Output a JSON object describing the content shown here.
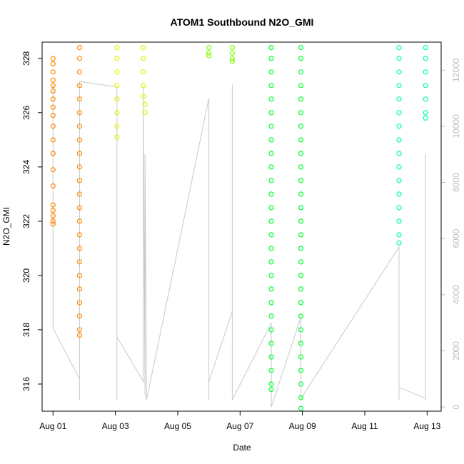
{
  "chart_data": {
    "type": "scatter",
    "title": "ATOM1 Southbound N2O_GMI",
    "xlabel": "Date",
    "ylabel": "N2O_GMI",
    "x_ticks": [
      "Aug 01",
      "Aug 03",
      "Aug 05",
      "Aug 07",
      "Aug 09",
      "Aug 11",
      "Aug 13"
    ],
    "x_tick_days": [
      1,
      3,
      5,
      7,
      9,
      11,
      13
    ],
    "xlim_days": [
      0.65,
      13.45
    ],
    "ylim": [
      315.0,
      328.6
    ],
    "y_ticks": [
      316,
      318,
      320,
      322,
      324,
      326,
      328
    ],
    "y2_ticks": [
      0,
      2000,
      4000,
      6000,
      8000,
      10000,
      12000
    ],
    "y2lim": [
      -150,
      13000
    ],
    "grid": false,
    "legend": "none",
    "point_series": [
      {
        "color": "#ff8c00",
        "points": [
          [
            1.0,
            328.0
          ],
          [
            1.0,
            327.8
          ],
          [
            1.0,
            327.5
          ],
          [
            1.0,
            327.2
          ],
          [
            1.0,
            327.0
          ],
          [
            1.0,
            326.8
          ],
          [
            1.0,
            326.5
          ],
          [
            1.0,
            326.2
          ],
          [
            1.0,
            325.9
          ],
          [
            1.0,
            325.5
          ],
          [
            1.0,
            325.0
          ],
          [
            1.0,
            324.5
          ],
          [
            1.0,
            323.9
          ],
          [
            1.0,
            323.3
          ],
          [
            1.0,
            322.6
          ],
          [
            1.0,
            322.4
          ],
          [
            1.0,
            322.2
          ],
          [
            1.0,
            322.0
          ],
          [
            1.0,
            321.9
          ],
          [
            1.85,
            328.4
          ],
          [
            1.85,
            328.0
          ],
          [
            1.85,
            327.5
          ],
          [
            1.85,
            327.0
          ],
          [
            1.85,
            326.5
          ],
          [
            1.85,
            326.0
          ],
          [
            1.85,
            325.5
          ],
          [
            1.85,
            325.0
          ],
          [
            1.85,
            324.5
          ],
          [
            1.85,
            324.0
          ],
          [
            1.85,
            323.5
          ],
          [
            1.85,
            323.0
          ],
          [
            1.85,
            322.5
          ],
          [
            1.85,
            322.0
          ],
          [
            1.85,
            321.5
          ],
          [
            1.85,
            321.0
          ],
          [
            1.85,
            320.5
          ],
          [
            1.85,
            320.0
          ],
          [
            1.85,
            319.5
          ],
          [
            1.85,
            319.0
          ],
          [
            1.85,
            318.5
          ],
          [
            1.85,
            318.0
          ],
          [
            1.85,
            317.8
          ]
        ]
      },
      {
        "color": "#e6f000",
        "points": [
          [
            3.05,
            328.4
          ],
          [
            3.05,
            328.0
          ],
          [
            3.05,
            327.5
          ],
          [
            3.05,
            327.0
          ],
          [
            3.05,
            326.5
          ],
          [
            3.05,
            326.0
          ],
          [
            3.05,
            325.5
          ],
          [
            3.05,
            325.1
          ],
          [
            3.9,
            328.4
          ],
          [
            3.9,
            328.0
          ],
          [
            3.9,
            327.5
          ],
          [
            3.9,
            327.0
          ],
          [
            3.9,
            326.6
          ],
          [
            3.95,
            326.3
          ],
          [
            3.95,
            326.0
          ]
        ]
      },
      {
        "color": "#7fff00",
        "points": [
          [
            6.0,
            328.4
          ],
          [
            6.0,
            328.2
          ],
          [
            6.0,
            328.1
          ],
          [
            6.75,
            328.4
          ],
          [
            6.75,
            328.2
          ],
          [
            6.75,
            328.0
          ],
          [
            6.75,
            327.9
          ]
        ]
      },
      {
        "color": "#00ff30",
        "points": [
          [
            8.0,
            328.4
          ],
          [
            8.0,
            328.0
          ],
          [
            8.0,
            327.5
          ],
          [
            8.0,
            327.0
          ],
          [
            8.0,
            326.5
          ],
          [
            8.0,
            326.0
          ],
          [
            8.0,
            325.5
          ],
          [
            8.0,
            325.0
          ],
          [
            8.0,
            324.5
          ],
          [
            8.0,
            324.0
          ],
          [
            8.0,
            323.5
          ],
          [
            8.0,
            323.0
          ],
          [
            8.0,
            322.5
          ],
          [
            8.0,
            322.0
          ],
          [
            8.0,
            321.5
          ],
          [
            8.0,
            321.0
          ],
          [
            8.0,
            320.5
          ],
          [
            8.0,
            320.0
          ],
          [
            8.0,
            319.5
          ],
          [
            8.0,
            319.0
          ],
          [
            8.0,
            318.5
          ],
          [
            8.0,
            318.0
          ],
          [
            8.0,
            317.5
          ],
          [
            8.0,
            317.0
          ],
          [
            8.0,
            316.5
          ],
          [
            8.0,
            316.0
          ],
          [
            8.0,
            315.8
          ],
          [
            8.95,
            328.4
          ],
          [
            8.95,
            328.0
          ],
          [
            8.95,
            327.5
          ],
          [
            8.95,
            327.0
          ],
          [
            8.95,
            326.5
          ],
          [
            8.95,
            326.0
          ],
          [
            8.95,
            325.5
          ],
          [
            8.95,
            325.0
          ],
          [
            8.95,
            324.5
          ],
          [
            8.95,
            324.0
          ],
          [
            8.95,
            323.5
          ],
          [
            8.95,
            323.0
          ],
          [
            8.95,
            322.5
          ],
          [
            8.95,
            322.0
          ],
          [
            8.95,
            321.5
          ],
          [
            8.95,
            321.0
          ],
          [
            8.95,
            320.5
          ],
          [
            8.95,
            320.0
          ],
          [
            8.95,
            319.5
          ],
          [
            8.95,
            319.0
          ],
          [
            8.95,
            318.5
          ],
          [
            8.95,
            318.0
          ],
          [
            8.95,
            317.5
          ],
          [
            8.95,
            317.0
          ],
          [
            8.95,
            316.5
          ],
          [
            8.95,
            316.0
          ],
          [
            8.95,
            315.5
          ],
          [
            8.95,
            315.1
          ]
        ]
      },
      {
        "color": "#00ffa8",
        "points": [
          [
            12.1,
            328.4
          ],
          [
            12.1,
            328.0
          ],
          [
            12.1,
            327.5
          ],
          [
            12.1,
            327.0
          ],
          [
            12.1,
            326.5
          ],
          [
            12.1,
            326.0
          ],
          [
            12.1,
            325.5
          ],
          [
            12.1,
            325.0
          ],
          [
            12.1,
            324.5
          ],
          [
            12.1,
            324.0
          ],
          [
            12.1,
            323.5
          ],
          [
            12.1,
            323.0
          ],
          [
            12.1,
            322.5
          ],
          [
            12.1,
            322.0
          ],
          [
            12.1,
            321.5
          ],
          [
            12.1,
            321.2
          ],
          [
            12.95,
            328.4
          ],
          [
            12.95,
            328.0
          ],
          [
            12.95,
            327.5
          ],
          [
            12.95,
            327.0
          ],
          [
            12.95,
            326.5
          ],
          [
            12.95,
            326.0
          ],
          [
            12.95,
            325.8
          ]
        ]
      }
    ],
    "secondary_series": {
      "color": "#c8c8c8",
      "axis": "right",
      "points": [
        [
          1.0,
          11600
        ],
        [
          1.0,
          6400
        ],
        [
          1.0,
          2800
        ],
        [
          1.85,
          1000
        ],
        [
          1.85,
          250
        ],
        [
          1.85,
          11600
        ],
        [
          3.05,
          11400
        ],
        [
          3.05,
          250
        ],
        [
          3.05,
          2500
        ],
        [
          3.9,
          900
        ],
        [
          3.9,
          11400
        ],
        [
          3.95,
          400
        ],
        [
          3.95,
          9000
        ],
        [
          4.0,
          250
        ],
        [
          6.0,
          11000
        ],
        [
          6.0,
          3500
        ],
        [
          6.0,
          250
        ],
        [
          6.0,
          900
        ],
        [
          6.75,
          3400
        ],
        [
          6.75,
          11500
        ],
        [
          6.75,
          250
        ],
        [
          8.0,
          3000
        ],
        [
          8.0,
          250
        ],
        [
          8.0,
          0
        ],
        [
          8.95,
          3200
        ],
        [
          8.95,
          250
        ],
        [
          8.95,
          300
        ],
        [
          12.1,
          5700
        ],
        [
          12.1,
          250
        ],
        [
          12.1,
          700
        ],
        [
          12.95,
          300
        ],
        [
          12.95,
          9000
        ],
        [
          12.95,
          250
        ]
      ]
    }
  }
}
